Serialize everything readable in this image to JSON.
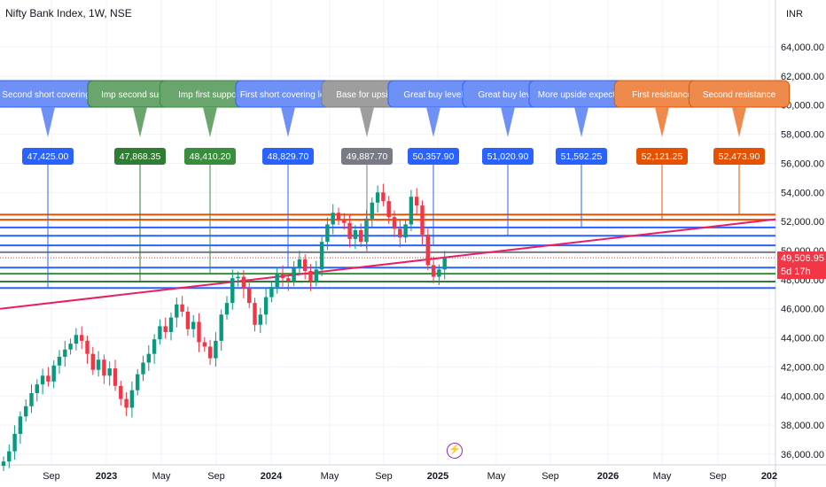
{
  "header": {
    "symbol_title": "Nifty Bank Index, 1W, NSE",
    "currency": "INR"
  },
  "price_axis": {
    "ticks": [
      "64,000.00",
      "62,000.00",
      "60,000.00",
      "58,000.00",
      "56,000.00",
      "54,000.00",
      "52,000.00",
      "50,000.00",
      "48,000.00",
      "46,000.00",
      "44,000.00",
      "42,000.00",
      "40,000.00",
      "38,000.00",
      "36,000.00"
    ],
    "last_price": "49,506.95",
    "countdown": "5d 17h"
  },
  "time_axis": {
    "ticks": [
      {
        "label": "Sep",
        "bold": false
      },
      {
        "label": "2023",
        "bold": true
      },
      {
        "label": "May",
        "bold": false
      },
      {
        "label": "Sep",
        "bold": false
      },
      {
        "label": "2024",
        "bold": true
      },
      {
        "label": "May",
        "bold": false
      },
      {
        "label": "Sep",
        "bold": false
      },
      {
        "label": "2025",
        "bold": true
      },
      {
        "label": "May",
        "bold": false
      },
      {
        "label": "Sep",
        "bold": false
      },
      {
        "label": "2026",
        "bold": true
      },
      {
        "label": "May",
        "bold": false
      },
      {
        "label": "Sep",
        "bold": false
      },
      {
        "label": "202",
        "bold": true
      }
    ]
  },
  "annotations": [
    {
      "label": "Imp Second short covering level",
      "price": "47,425.00",
      "color": "#2962ff",
      "lighter": "#6f91f6"
    },
    {
      "label": "Imp second support",
      "price": "47,868.35",
      "color": "#2e7d32",
      "lighter": "#6aa56d"
    },
    {
      "label": "Imp first support",
      "price": "48,410.20",
      "color": "#388e3c",
      "lighter": "#6aa56d"
    },
    {
      "label": "First short covering level",
      "price": "48,829.70",
      "color": "#2962ff",
      "lighter": "#6f91f6"
    },
    {
      "label": "Base for upside",
      "price": "49,887.70",
      "color": "#787b86",
      "lighter": "#9e9e9e"
    },
    {
      "label": "Great buy level",
      "price": "50,357.90",
      "color": "#2962ff",
      "lighter": "#6f91f6"
    },
    {
      "label": "Great buy level",
      "price": "51,020.90",
      "color": "#2962ff",
      "lighter": "#6f91f6"
    },
    {
      "label": "More upside expected",
      "price": "51,592.25",
      "color": "#2962ff",
      "lighter": "#6f91f6"
    },
    {
      "label": "First resistance",
      "price": "52,121.25",
      "color": "#e65100",
      "lighter": "#ef8a4d"
    },
    {
      "label": "Second resistance",
      "price": "52,473.90",
      "color": "#e65100",
      "lighter": "#ef8a4d"
    }
  ],
  "colors": {
    "up": "#089981",
    "down": "#f23645",
    "trendline": "#e91e63",
    "grid": "#f0f3fa",
    "indicator": "#9c27b0"
  },
  "chart_data": {
    "type": "candlestick",
    "timeframe": "1W",
    "y_range": [
      35500,
      65500
    ],
    "horizontal_levels": [
      47425.0,
      47868.35,
      48410.2,
      48829.7,
      49887.7,
      50357.9,
      51020.9,
      51592.25,
      52121.25,
      52473.9
    ],
    "last_price": 49506.95,
    "candles_approx_closes": [
      35500,
      36200,
      37400,
      38600,
      39300,
      40200,
      40800,
      41400,
      41000,
      42100,
      42700,
      43200,
      43600,
      44200,
      43800,
      42900,
      41800,
      42500,
      41400,
      41900,
      40700,
      39800,
      39200,
      40400,
      41500,
      42300,
      42900,
      43900,
      44800,
      44400,
      45400,
      46300,
      45800,
      44600,
      45100,
      43700,
      43400,
      42600,
      43800,
      45600,
      46400,
      48100,
      48200,
      47400,
      46400,
      44900,
      45600,
      46800,
      47500,
      48400,
      48100,
      47900,
      48800,
      49400,
      48600,
      47900,
      48700,
      50600,
      51800,
      52600,
      52100,
      51900,
      50800,
      51400,
      50600,
      52200,
      53300,
      54000,
      53400,
      52300,
      51500,
      50900,
      51800,
      53700,
      53100,
      51100,
      49000,
      48200,
      48700,
      49500
    ]
  },
  "indicator": {
    "icon": "lightning-icon",
    "glyph": "⚡"
  }
}
